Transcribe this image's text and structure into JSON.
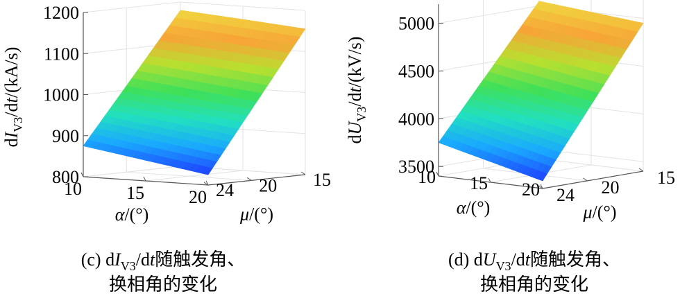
{
  "chart_data": [
    {
      "type": "surface",
      "zlabel": [
        {
          "text": "d"
        },
        {
          "text": "I",
          "style": "italic"
        },
        {
          "text": "V3",
          "style": "sub"
        },
        {
          "text": "/d"
        },
        {
          "text": "t",
          "style": "italic"
        },
        {
          "text": "/(kA/s)"
        }
      ],
      "xlabel": [
        {
          "text": "α",
          "style": "italic"
        },
        {
          "text": "/(°)"
        }
      ],
      "ylabel": [
        {
          "text": "μ",
          "style": "italic"
        },
        {
          "text": "/(°)"
        }
      ],
      "caption": [
        [
          {
            "text": "(c) d"
          },
          {
            "text": "I",
            "style": "italic"
          },
          {
            "text": "V3",
            "style": "sub"
          },
          {
            "text": "/d"
          },
          {
            "text": "t",
            "style": "italic"
          },
          {
            "text": "随触发角、"
          }
        ],
        [
          {
            "text": "换相角的变化"
          }
        ]
      ],
      "x": [
        10,
        15,
        20
      ],
      "y": [
        15,
        20,
        24
      ],
      "z": [
        [
          1180,
          1168,
          1155
        ],
        [
          1010,
          991,
          972
        ],
        [
          875,
          850,
          825
        ]
      ],
      "xlim": [
        10,
        20
      ],
      "ylim": [
        15,
        24
      ],
      "zlim": [
        800,
        1200
      ],
      "xticks": [
        10,
        15,
        20
      ],
      "yticks": [
        15,
        20,
        24
      ],
      "zticks": [
        800,
        900,
        1000,
        1100,
        1200
      ],
      "grid": true,
      "colormap": [
        "#1f3cff",
        "#1aa8ff",
        "#22e0c0",
        "#3ee05a",
        "#b8e030",
        "#f7a437",
        "#f0d840"
      ]
    },
    {
      "type": "surface",
      "zlabel": [
        {
          "text": "d"
        },
        {
          "text": "U",
          "style": "italic"
        },
        {
          "text": "V3",
          "style": "sub"
        },
        {
          "text": "/d"
        },
        {
          "text": "t",
          "style": "italic"
        },
        {
          "text": "/(kV/s)"
        }
      ],
      "xlabel": [
        {
          "text": "α",
          "style": "italic"
        },
        {
          "text": "/(°)"
        }
      ],
      "ylabel": [
        {
          "text": "μ",
          "style": "italic"
        },
        {
          "text": "/(°)"
        }
      ],
      "caption": [
        [
          {
            "text": "(d) d"
          },
          {
            "text": "U",
            "style": "italic"
          },
          {
            "text": "V3",
            "style": "sub"
          },
          {
            "text": "/d"
          },
          {
            "text": "t",
            "style": "italic"
          },
          {
            "text": "随触发角、"
          }
        ],
        [
          {
            "text": "换相角的变化"
          }
        ]
      ],
      "x": [
        10,
        15,
        20
      ],
      "y": [
        15,
        20,
        24
      ],
      "z": [
        [
          5050,
          5000,
          4950
        ],
        [
          4328,
          4230,
          4133
        ],
        [
          3750,
          3615,
          3480
        ]
      ],
      "xlim": [
        10,
        20
      ],
      "ylim": [
        15,
        24
      ],
      "zlim": [
        3400,
        5200
      ],
      "xticks": [
        10,
        15,
        20
      ],
      "yticks": [
        15,
        20,
        24
      ],
      "zticks": [
        3500,
        4000,
        4500,
        5000
      ],
      "grid": true,
      "colormap": [
        "#1f3cff",
        "#1aa8ff",
        "#22e0c0",
        "#3ee05a",
        "#b8e030",
        "#f7a437",
        "#f0d840"
      ]
    }
  ]
}
